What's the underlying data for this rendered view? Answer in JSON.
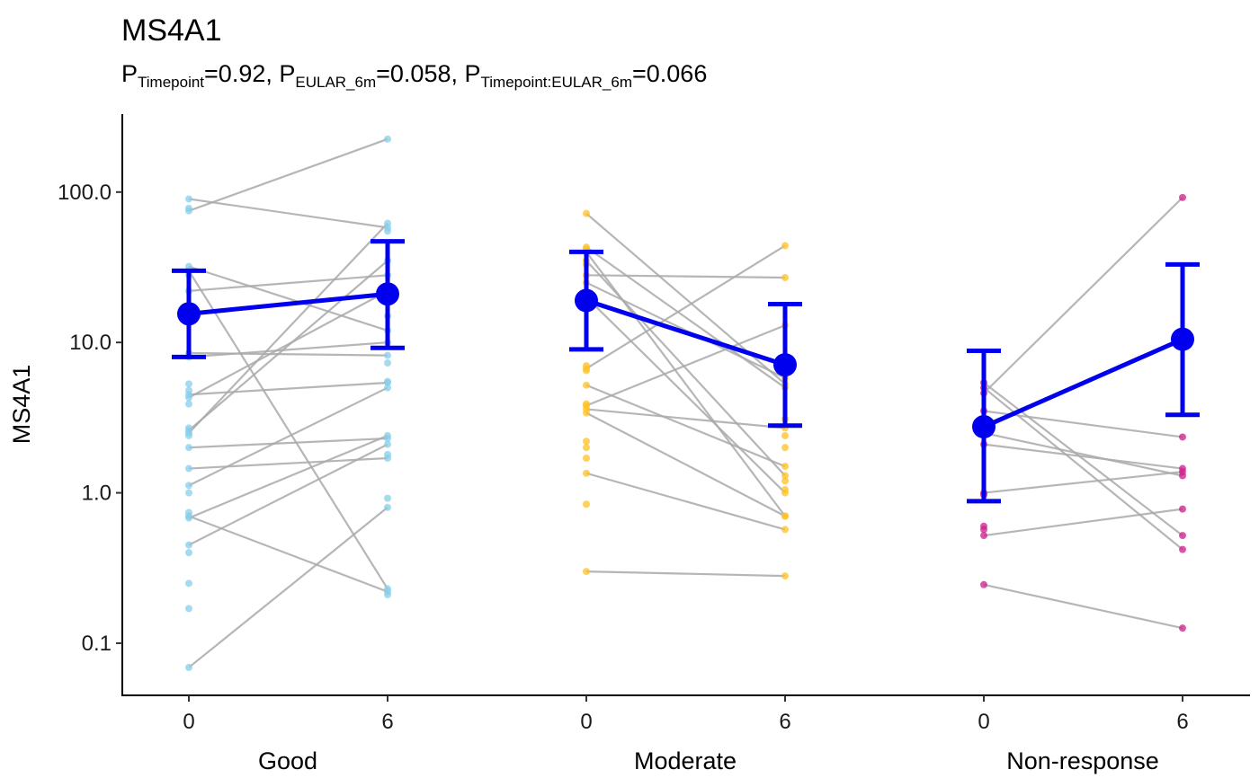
{
  "chart_data": {
    "type": "scatter",
    "title": "MS4A1",
    "subtitle": {
      "parts": [
        {
          "letter": "P",
          "sub": "Timepoint",
          "value": "=0.92, "
        },
        {
          "letter": "P",
          "sub": "EULAR_6m",
          "value": "=0.058, "
        },
        {
          "letter": "P",
          "sub": "Timepoint:EULAR_6m",
          "value": "=0.066"
        }
      ]
    },
    "ylabel": "MS4A1",
    "yscale": "log10",
    "ylim": [
      0.045,
      330
    ],
    "yticks": [
      0.1,
      1.0,
      10.0,
      100.0
    ],
    "ytick_labels": [
      "0.1",
      "1.0",
      "10.0",
      "100.0"
    ],
    "x_tick_labels": [
      "0",
      "6"
    ],
    "grid": false,
    "colors": {
      "Good": "#87CEEB",
      "Moderate": "#FFC125",
      "Non-response": "#CD1C8C",
      "mean": "#0000EE",
      "pair_line": "#A9A9A9"
    },
    "groups": [
      {
        "name": "Good",
        "mean": [
          {
            "timepoint": 0,
            "value": 15.5,
            "lower": 8.0,
            "upper": 30.0
          },
          {
            "timepoint": 6,
            "value": 21.0,
            "lower": 9.2,
            "upper": 47.0
          }
        ],
        "pairs": [
          [
            90,
            58
          ],
          [
            75,
            225
          ],
          [
            32,
            12
          ],
          [
            30,
            0.23
          ],
          [
            22,
            28
          ],
          [
            8.5,
            8.2
          ],
          [
            8.0,
            10.0
          ],
          [
            4.5,
            5.4
          ],
          [
            4.3,
            22
          ],
          [
            2.6,
            35
          ],
          [
            2.5,
            62
          ],
          [
            2.0,
            2.3
          ],
          [
            1.45,
            1.7
          ],
          [
            1.12,
            5.0
          ],
          [
            0.7,
            0.22
          ],
          [
            0.68,
            2.4
          ],
          [
            0.45,
            2.1
          ],
          [
            0.069,
            0.8
          ]
        ],
        "unpaired_t0": [
          78,
          28,
          5.3,
          4.8,
          3.9,
          2.7,
          2.4,
          1.0,
          0.74,
          0.4,
          0.25,
          0.17
        ],
        "unpaired_t6": [
          55,
          15,
          7.3,
          5.5,
          1.8,
          0.92,
          0.21
        ]
      },
      {
        "name": "Moderate",
        "mean": [
          {
            "timepoint": 0,
            "value": 19.0,
            "lower": 9.0,
            "upper": 40.0
          },
          {
            "timepoint": 6,
            "value": 7.1,
            "lower": 2.8,
            "upper": 18.0
          }
        ],
        "pairs": [
          [
            72,
            5.3
          ],
          [
            43,
            5.0
          ],
          [
            40,
            0.7
          ],
          [
            35,
            1.3
          ],
          [
            28,
            27
          ],
          [
            25,
            5.8
          ],
          [
            20,
            1.0
          ],
          [
            6.7,
            44
          ],
          [
            5.2,
            1.5
          ],
          [
            3.8,
            13
          ],
          [
            3.6,
            2.7
          ],
          [
            3.4,
            0.7
          ],
          [
            1.35,
            0.57
          ],
          [
            0.3,
            0.28
          ]
        ],
        "unpaired_t0": [
          42,
          33,
          7.0,
          6.5,
          3.9,
          2.2,
          2.0,
          1.7,
          0.84
        ],
        "unpaired_t6": [
          3.1,
          2.4,
          2.0,
          1.2,
          1.05
        ]
      },
      {
        "name": "Non-response",
        "mean": [
          {
            "timepoint": 0,
            "value": 2.75,
            "lower": 0.88,
            "upper": 8.8
          },
          {
            "timepoint": 6,
            "value": 10.5,
            "lower": 3.3,
            "upper": 33.0
          }
        ],
        "pairs": [
          [
            5.4,
            0.52
          ],
          [
            5.0,
            0.42
          ],
          [
            4.6,
            92
          ],
          [
            3.5,
            2.35
          ],
          [
            2.5,
            1.3
          ],
          [
            2.1,
            1.45
          ],
          [
            1.0,
            1.38
          ],
          [
            0.52,
            0.78
          ],
          [
            0.245,
            0.126
          ]
        ],
        "unpaired_t0": [
          0.97,
          0.6,
          0.57
        ],
        "unpaired_t6": []
      }
    ],
    "group_labels": [
      "Good",
      "Moderate",
      "Non-response"
    ]
  }
}
